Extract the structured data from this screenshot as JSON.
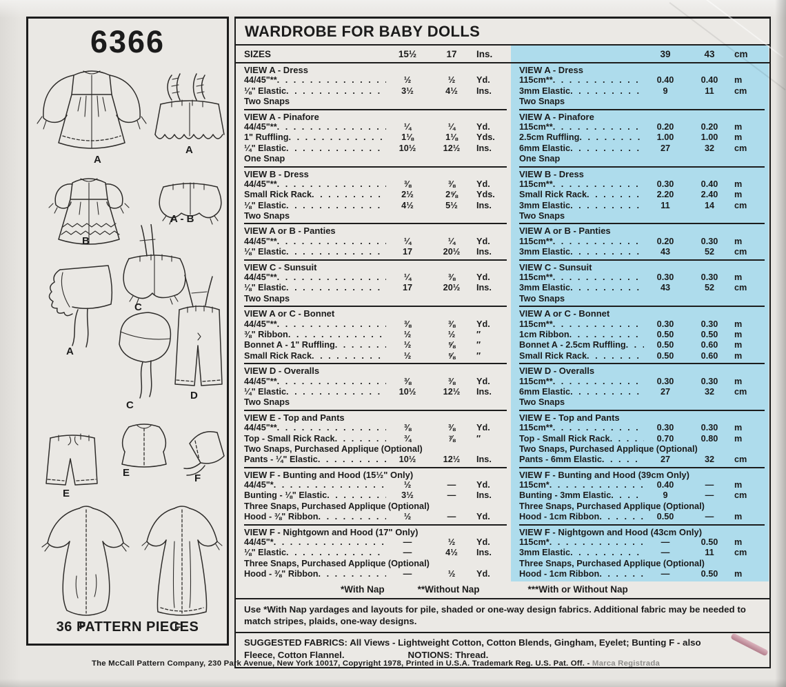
{
  "pattern": {
    "number": "6366",
    "pieces": "36 PATTERN PIECES"
  },
  "colors": {
    "metric_panel": "#aedcec",
    "paper": "#e7e5e1",
    "ink": "#1b1b1b"
  },
  "illustrations": {
    "items": [
      {
        "name": "dress-long-sleeve",
        "label": "A"
      },
      {
        "name": "pinafore",
        "label": "A"
      },
      {
        "name": "dress-short-sleeve",
        "label": "B"
      },
      {
        "name": "panties",
        "label": "A - B"
      },
      {
        "name": "sunsuit",
        "label": "C"
      },
      {
        "name": "bonnet-ruffled",
        "label": "A"
      },
      {
        "name": "bonnet-plain",
        "label": "C"
      },
      {
        "name": "overalls",
        "label": "D"
      },
      {
        "name": "pants",
        "label": "E"
      },
      {
        "name": "top",
        "label": "E"
      },
      {
        "name": "hood",
        "label": "F"
      },
      {
        "name": "bunting",
        "label": "F"
      },
      {
        "name": "nightgown",
        "label": "F"
      }
    ]
  },
  "table": {
    "title": "WARDROBE FOR BABY DOLLS",
    "imperial": {
      "header": {
        "label": "SIZES",
        "v1": "15½",
        "v2": "17",
        "unit": "Ins."
      },
      "sections": [
        {
          "title": "VIEW A - Dress",
          "rows": [
            {
              "label": "44/45\"**",
              "v1": "½",
              "v2": "½",
              "unit": "Yd."
            },
            {
              "label": "⅛\" Elastic",
              "v1": "3½",
              "v2": "4½",
              "unit": "Ins."
            },
            {
              "text": "Two Snaps"
            }
          ]
        },
        {
          "title": "VIEW A - Pinafore",
          "rows": [
            {
              "label": "44/45\"**",
              "v1": "¼",
              "v2": "¼",
              "unit": "Yd."
            },
            {
              "label": "1\" Ruffling",
              "v1": "1⅛",
              "v2": "1⅛",
              "unit": "Yds."
            },
            {
              "label": "¼\" Elastic",
              "v1": "10½",
              "v2": "12½",
              "unit": "Ins."
            },
            {
              "text": "One Snap"
            }
          ]
        },
        {
          "title": "VIEW B - Dress",
          "rows": [
            {
              "label": "44/45\"**",
              "v1": "⅜",
              "v2": "⅜",
              "unit": "Yd."
            },
            {
              "label": "Small Rick Rack",
              "v1": "2½",
              "v2": "2⅝",
              "unit": "Yds."
            },
            {
              "label": "⅛\" Elastic",
              "v1": "4½",
              "v2": "5½",
              "unit": "Ins."
            },
            {
              "text": "Two Snaps"
            }
          ]
        },
        {
          "title": "VIEW A or B - Panties",
          "rows": [
            {
              "label": "44/45\"**",
              "v1": "¼",
              "v2": "¼",
              "unit": "Yd."
            },
            {
              "label": "⅛\" Elastic",
              "v1": "17",
              "v2": "20½",
              "unit": "Ins."
            }
          ]
        },
        {
          "title": "VIEW C - Sunsuit",
          "rows": [
            {
              "label": "44/45\"**",
              "v1": "¼",
              "v2": "⅜",
              "unit": "Yd."
            },
            {
              "label": "⅛\" Elastic",
              "v1": "17",
              "v2": "20½",
              "unit": "Ins."
            },
            {
              "text": "Two Snaps"
            }
          ]
        },
        {
          "title": "VIEW A or C - Bonnet",
          "rows": [
            {
              "label": "44/45\"**",
              "v1": "⅜",
              "v2": "⅜",
              "unit": "Yd."
            },
            {
              "label": "⅜\" Ribbon",
              "v1": "½",
              "v2": "½",
              "unit": "″"
            },
            {
              "bold": "Bonnet A",
              "label": " - 1\" Ruffling",
              "v1": "½",
              "v2": "⅝",
              "unit": "″"
            },
            {
              "label": "Small Rick Rack",
              "v1": "½",
              "v2": "⅝",
              "unit": "″"
            }
          ]
        },
        {
          "title": "VIEW D - Overalls",
          "rows": [
            {
              "label": "44/45\"**",
              "v1": "⅜",
              "v2": "⅜",
              "unit": "Yd."
            },
            {
              "label": "¼\" Elastic",
              "v1": "10½",
              "v2": "12½",
              "unit": "Ins."
            },
            {
              "text": "Two Snaps"
            }
          ]
        },
        {
          "title": "VIEW E - Top and Pants",
          "rows": [
            {
              "label": "44/45\"**",
              "v1": "⅜",
              "v2": "⅜",
              "unit": "Yd."
            },
            {
              "bold": "Top",
              "label": " - Small Rick Rack",
              "v1": "¾",
              "v2": "⅞",
              "unit": "″"
            },
            {
              "text": "Two Snaps, Purchased Applique (Optional)"
            },
            {
              "bold": "Pants",
              "label": " - ¼\" Elastic",
              "v1": "10½",
              "v2": "12½",
              "unit": "Ins."
            }
          ]
        },
        {
          "title": "VIEW F - Bunting and Hood",
          "suffix": "(15½\" Only)",
          "rows": [
            {
              "label": "44/45\"*",
              "v1": "½",
              "v2": "—",
              "unit": "Yd."
            },
            {
              "bold": "Bunting",
              "label": " - ⅛\" Elastic",
              "v1": "3½",
              "v2": "—",
              "unit": "Ins."
            },
            {
              "text": "Three Snaps, Purchased Applique (Optional)"
            },
            {
              "bold": "Hood",
              "label": " - ⅜\" Ribbon",
              "v1": "½",
              "v2": "—",
              "unit": "Yd."
            }
          ]
        },
        {
          "title": "VIEW F - Nightgown and Hood",
          "suffix": "(17\" Only)",
          "rows": [
            {
              "label": "44/45\"*",
              "v1": "—",
              "v2": "½",
              "unit": "Yd."
            },
            {
              "label": "⅛\" Elastic",
              "v1": "—",
              "v2": "4½",
              "unit": "Ins."
            },
            {
              "text": "Three Snaps, Purchased Applique (Optional)"
            },
            {
              "bold": "Hood",
              "label": " - ⅜\" Ribbon",
              "v1": "—",
              "v2": "½",
              "unit": "Yd."
            }
          ]
        }
      ]
    },
    "metric": {
      "header": {
        "label": "",
        "v1": "39",
        "v2": "43",
        "unit": "cm"
      },
      "sections": [
        {
          "title": "VIEW A - Dress",
          "rows": [
            {
              "label": "115cm**",
              "v1": "0.40",
              "v2": "0.40",
              "unit": "m"
            },
            {
              "label": "3mm Elastic",
              "v1": "9",
              "v2": "11",
              "unit": "cm"
            },
            {
              "text": "Two Snaps"
            }
          ]
        },
        {
          "title": "VIEW A - Pinafore",
          "rows": [
            {
              "label": "115cm**",
              "v1": "0.20",
              "v2": "0.20",
              "unit": "m"
            },
            {
              "label": "2.5cm Ruffling",
              "v1": "1.00",
              "v2": "1.00",
              "unit": "m"
            },
            {
              "label": "6mm Elastic",
              "v1": "27",
              "v2": "32",
              "unit": "cm"
            },
            {
              "text": "One Snap"
            }
          ]
        },
        {
          "title": "VIEW B - Dress",
          "rows": [
            {
              "label": "115cm**",
              "v1": "0.30",
              "v2": "0.40",
              "unit": "m"
            },
            {
              "label": "Small Rick Rack",
              "v1": "2.20",
              "v2": "2.40",
              "unit": "m"
            },
            {
              "label": "3mm Elastic",
              "v1": "11",
              "v2": "14",
              "unit": "cm"
            },
            {
              "text": "Two Snaps"
            }
          ]
        },
        {
          "title": "VIEW A or B - Panties",
          "rows": [
            {
              "label": "115cm**",
              "v1": "0.20",
              "v2": "0.30",
              "unit": "m"
            },
            {
              "label": "3mm Elastic",
              "v1": "43",
              "v2": "52",
              "unit": "cm"
            }
          ]
        },
        {
          "title": "VIEW C - Sunsuit",
          "rows": [
            {
              "label": "115cm**",
              "v1": "0.30",
              "v2": "0.30",
              "unit": "m"
            },
            {
              "label": "3mm Elastic",
              "v1": "43",
              "v2": "52",
              "unit": "cm"
            },
            {
              "text": "Two Snaps"
            }
          ]
        },
        {
          "title": "VIEW A or C - Bonnet",
          "rows": [
            {
              "label": "115cm**",
              "v1": "0.30",
              "v2": "0.30",
              "unit": "m"
            },
            {
              "label": "1cm Ribbon",
              "v1": "0.50",
              "v2": "0.50",
              "unit": "m"
            },
            {
              "bold": "Bonnet A",
              "label": " - 2.5cm Ruffling",
              "v1": "0.50",
              "v2": "0.60",
              "unit": "m"
            },
            {
              "label": "Small Rick Rack",
              "v1": "0.50",
              "v2": "0.60",
              "unit": "m"
            }
          ]
        },
        {
          "title": "VIEW D - Overalls",
          "rows": [
            {
              "label": "115cm**",
              "v1": "0.30",
              "v2": "0.30",
              "unit": "m"
            },
            {
              "label": "6mm Elastic",
              "v1": "27",
              "v2": "32",
              "unit": "cm"
            },
            {
              "text": "Two Snaps"
            }
          ]
        },
        {
          "title": "VIEW E - Top and Pants",
          "rows": [
            {
              "label": "115cm**",
              "v1": "0.30",
              "v2": "0.30",
              "unit": "m"
            },
            {
              "bold": "Top",
              "label": " - Small Rick Rack",
              "v1": "0.70",
              "v2": "0.80",
              "unit": "m"
            },
            {
              "text": "Two Snaps, Purchased Applique (Optional)"
            },
            {
              "bold": "Pants",
              "label": " - 6mm Elastic",
              "v1": "27",
              "v2": "32",
              "unit": "cm"
            }
          ]
        },
        {
          "title": "VIEW F - Bunting and Hood",
          "suffix": "(39cm Only)",
          "rows": [
            {
              "label": "115cm*",
              "v1": "0.40",
              "v2": "—",
              "unit": "m"
            },
            {
              "bold": "Bunting",
              "label": " - 3mm Elastic",
              "v1": "9",
              "v2": "—",
              "unit": "cm"
            },
            {
              "text": "Three Snaps, Purchased Applique (Optional)"
            },
            {
              "bold": "Hood",
              "label": " - 1cm Ribbon",
              "v1": "0.50",
              "v2": "—",
              "unit": "m"
            }
          ]
        },
        {
          "title": "VIEW F - Nightgown and Hood",
          "suffix": "(43cm Only)",
          "rows": [
            {
              "label": "115cm*",
              "v1": "—",
              "v2": "0.50",
              "unit": "m"
            },
            {
              "label": "3mm Elastic",
              "v1": "—",
              "v2": "11",
              "unit": "cm"
            },
            {
              "text": "Three Snaps, Purchased Applique (Optional)"
            },
            {
              "bold": "Hood",
              "label": " - 1cm Ribbon",
              "v1": "—",
              "v2": "0.50",
              "unit": "m"
            }
          ]
        }
      ]
    },
    "footnotes": [
      "*With Nap",
      "**Without Nap",
      "***With or Without Nap"
    ]
  },
  "notes": {
    "nap": "Use *With Nap yardages and layouts for pile, shaded or one-way design  fabrics. Additional fabric may be needed to match stripes, plaids, one-way designs.",
    "fabrics_label": "SUGGESTED FABRICS:",
    "fabrics_text1": "All Views - Lightweight Cotton, Cotton Blends, Gingham, Eyelet; Bunting F - also",
    "fabrics_text2": "Fleece, Cotton Flannel.",
    "notions_label": "NOTIONS:",
    "notions_text": "Thread."
  },
  "footer": {
    "main": "The McCall Pattern Company, 230 Park Avenue, New York 10017, Copyright 1978, Printed in U.S.A. Trademark Reg. U.S. Pat. Off. -",
    "faded": "Marca Registrada"
  }
}
